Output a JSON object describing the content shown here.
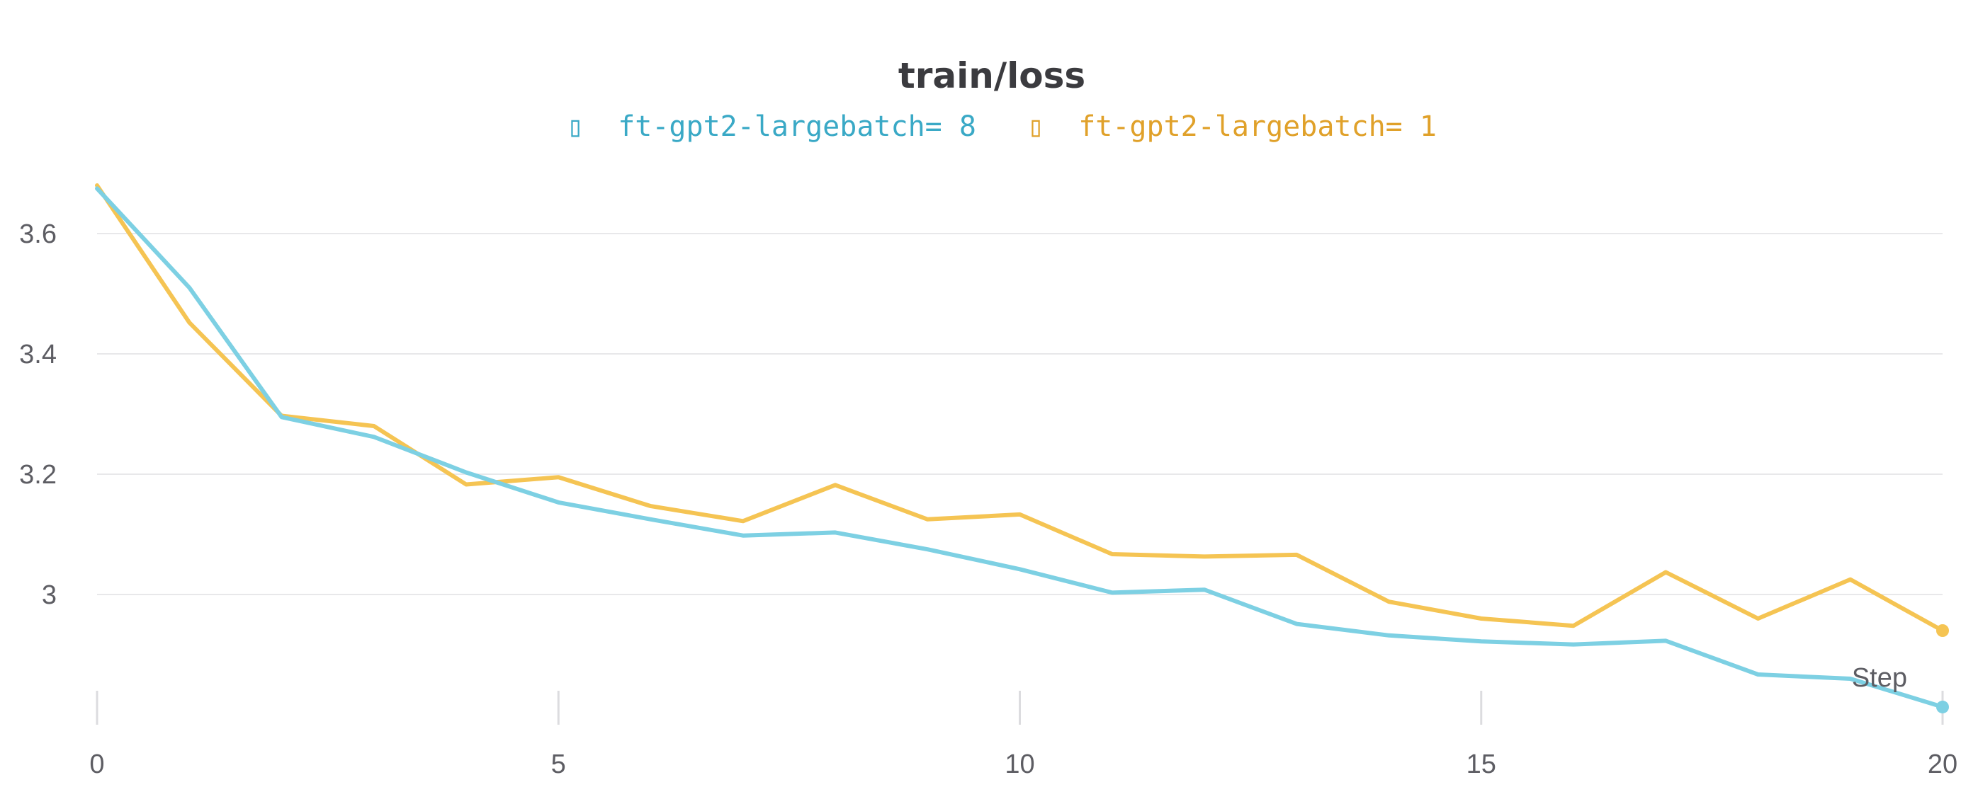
{
  "chart_data": {
    "type": "line",
    "title": "train/loss",
    "xlabel": "Step",
    "ylabel": "",
    "xlim": [
      0,
      20
    ],
    "ylim": [
      2.8,
      3.72
    ],
    "x_ticks": [
      "0",
      "5",
      "10",
      "15",
      "20"
    ],
    "y_ticks": [
      "3",
      "3.2",
      "3.4",
      "3.6"
    ],
    "grid": true,
    "legend_position": "top-center",
    "legend_marker": "▯",
    "x": [
      0,
      1,
      2,
      3,
      4,
      5,
      6,
      7,
      8,
      9,
      10,
      11,
      12,
      13,
      14,
      15,
      16,
      17,
      18,
      19,
      20
    ],
    "series": [
      {
        "name": "ft-gpt2-largebatch= 8",
        "color": "#7dd0e3",
        "label_color": "#3aa9c6",
        "values": [
          3.675,
          3.51,
          3.295,
          3.262,
          3.203,
          3.153,
          3.125,
          3.098,
          3.103,
          3.075,
          3.042,
          3.003,
          3.008,
          2.951,
          2.932,
          2.922,
          2.917,
          2.923,
          2.867,
          2.86,
          2.813
        ]
      },
      {
        "name": "ft-gpt2-largebatch= 1",
        "color": "#f5c453",
        "label_color": "#e0a12a",
        "values": [
          3.68,
          3.452,
          3.297,
          3.28,
          3.183,
          3.195,
          3.147,
          3.122,
          3.182,
          3.125,
          3.133,
          3.067,
          3.063,
          3.066,
          2.988,
          2.96,
          2.948,
          3.037,
          2.96,
          3.025,
          2.94
        ]
      }
    ]
  }
}
